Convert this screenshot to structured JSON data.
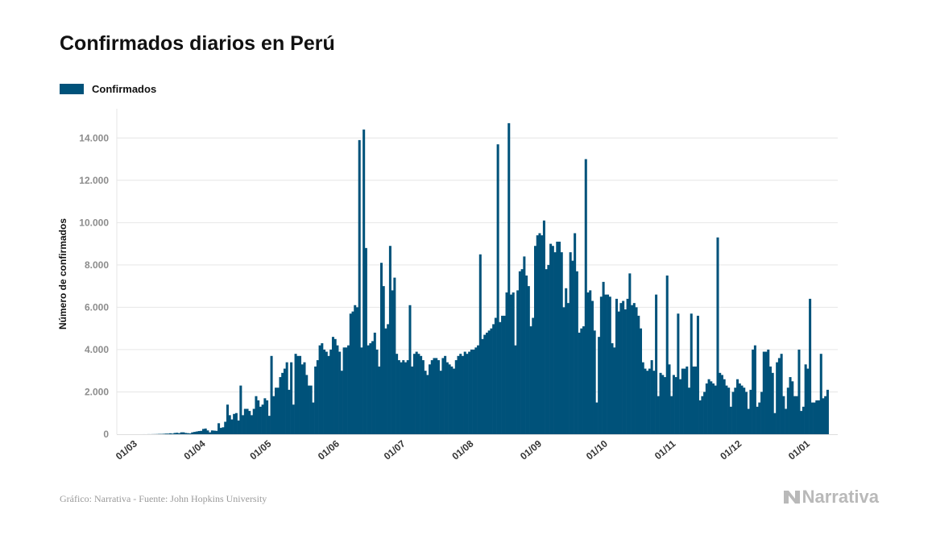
{
  "title": "Confirmados diarios en Perú",
  "footer": "Gráfico: Narrativa - Fuente: John Hopkins University",
  "brand": "Narrativa",
  "colors": {
    "bar": "#00527a",
    "grid": "#e6e6e6",
    "tick": "#8c8c8c",
    "axis_label": "#111111"
  },
  "chart_data": {
    "type": "bar",
    "title": "Confirmados diarios en Perú",
    "ylabel": "Número de confirmados",
    "xlabel": "",
    "ylim": [
      0,
      15000
    ],
    "grid": true,
    "legend": {
      "position": "top-left",
      "entries": [
        "Confirmados"
      ]
    },
    "y_ticks": [
      "0",
      "2.000",
      "4.000",
      "6.000",
      "8.000",
      "10.000",
      "12.000",
      "14.000"
    ],
    "x_ticks": [
      "01/03",
      "01/04",
      "01/05",
      "01/06",
      "01/07",
      "01/08",
      "01/09",
      "01/10",
      "01/11",
      "01/12",
      "01/01"
    ],
    "series": [
      {
        "name": "Confirmados",
        "x_range": [
          "2020-03-06",
          "2020-12-28"
        ],
        "values": [
          1,
          0,
          3,
          2,
          5,
          6,
          9,
          15,
          15,
          20,
          30,
          30,
          45,
          30,
          60,
          70,
          50,
          90,
          90,
          60,
          50,
          40,
          90,
          110,
          130,
          150,
          160,
          250,
          270,
          180,
          90,
          180,
          170,
          160,
          520,
          300,
          330,
          590,
          1400,
          900,
          700,
          960,
          1000,
          650,
          2300,
          900,
          1200,
          1200,
          1100,
          900,
          1200,
          1800,
          1600,
          1300,
          1400,
          1700,
          1600,
          870,
          3700,
          1800,
          2200,
          2200,
          2700,
          2900,
          3100,
          3400,
          2100,
          3400,
          1400,
          3800,
          3700,
          3700,
          3300,
          3400,
          2800,
          2300,
          2300,
          1500,
          3200,
          3500,
          4200,
          4300,
          4000,
          3900,
          3700,
          4000,
          4600,
          4500,
          4200,
          3900,
          3000,
          4100,
          4100,
          4200,
          5700,
          5800,
          6100,
          6000,
          13900,
          4100,
          14400,
          8800,
          4200,
          4300,
          4400,
          4800,
          4000,
          3200,
          8100,
          7000,
          5000,
          5200,
          8900,
          6800,
          7400,
          3800,
          3500,
          3400,
          3500,
          3400,
          3500,
          6100,
          3200,
          3800,
          3900,
          3800,
          3700,
          3500,
          3000,
          2800,
          3300,
          3500,
          3600,
          3600,
          3500,
          3000,
          3600,
          3700,
          3400,
          3300,
          3200,
          3100,
          3500,
          3700,
          3800,
          3700,
          3900,
          3800,
          3900,
          4000,
          4000,
          4100,
          4200,
          8500,
          4500,
          4700,
          4800,
          4900,
          5000,
          5200,
          5500,
          13700,
          5300,
          5600,
          5600,
          6700,
          14700,
          6600,
          6700,
          4200,
          6800,
          7700,
          7800,
          8400,
          7500,
          7000,
          5100,
          5500,
          8900,
          9400,
          9500,
          9400,
          10100,
          7800,
          8000,
          9000,
          8900,
          8600,
          9100,
          9100,
          8600,
          6000,
          6900,
          6200,
          8600,
          8200,
          9500,
          7700,
          4800,
          5000,
          5100,
          13000,
          6700,
          6800,
          6300,
          4900,
          1500,
          4600,
          6500,
          7200,
          6600,
          6600,
          6500,
          4300,
          4100,
          6400,
          5800,
          6200,
          6300,
          5900,
          6400,
          7600,
          6100,
          6200,
          6000,
          5600,
          5000,
          3400,
          3100,
          3000,
          3100,
          3500,
          3000,
          6600,
          1800,
          2900,
          2800,
          2700,
          7500,
          3300,
          1800,
          2800,
          2700,
          5700,
          2600,
          3100,
          3100,
          3200,
          2200,
          5700,
          3200,
          3200,
          5600,
          1600,
          1800,
          2000,
          2400,
          2600,
          2500,
          2400,
          2300,
          9300,
          2900,
          2800,
          2600,
          2300,
          2200,
          1300,
          2000,
          2200,
          2600,
          2400,
          2300,
          2200,
          2000,
          1200,
          2100,
          4000,
          4200,
          1300,
          1500,
          2000,
          3900,
          3900,
          4000,
          3200,
          2900,
          1000,
          3400,
          3600,
          3800,
          1800,
          1200,
          2200,
          2700,
          2500,
          1800,
          1800,
          4000,
          1100,
          1300,
          3300,
          3100,
          6400,
          1500,
          1500,
          1600,
          1600,
          3800,
          1700,
          1800,
          2100
        ]
      }
    ]
  }
}
